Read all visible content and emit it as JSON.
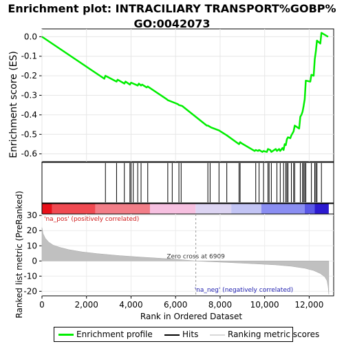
{
  "title_line1": "Enrichment plot: INTRACILIARY TRANSPORT%GOBP%",
  "title_line2": "GO:0042073",
  "chart_data": {
    "type": "line",
    "es_panel": {
      "ylabel": "Enrichment score (ES)",
      "ylim": [
        -0.64,
        0.04
      ],
      "yticks": [
        0.0,
        -0.1,
        -0.2,
        -0.3,
        -0.4,
        -0.5,
        -0.6
      ],
      "ytick_labels": [
        "0.0",
        "-0.1",
        "-0.2",
        "-0.3",
        "-0.4",
        "-0.5",
        "-0.6"
      ],
      "line_color": "#00ee00",
      "x": [
        0,
        2800,
        2850,
        3350,
        3400,
        3700,
        3750,
        3950,
        4000,
        4100,
        4300,
        4350,
        4450,
        4500,
        4700,
        4750,
        5600,
        5650,
        6100,
        6150,
        6300,
        7400,
        7450,
        7600,
        7950,
        8300,
        8850,
        8900,
        8950,
        9550,
        9600,
        9700,
        9750,
        9900,
        9950,
        10100,
        10150,
        10250,
        10300,
        10500,
        10550,
        10650,
        10700,
        10800,
        10850,
        10900,
        10950,
        11000,
        11050,
        11150,
        11200,
        11300,
        11350,
        11550,
        11600,
        11650,
        11700,
        11750,
        11800,
        11850,
        12050,
        12100,
        12200,
        12250,
        12300,
        12350,
        12500,
        12550,
        12850
      ],
      "y": [
        0.0,
        -0.215,
        -0.2,
        -0.23,
        -0.22,
        -0.24,
        -0.23,
        -0.245,
        -0.235,
        -0.24,
        -0.25,
        -0.24,
        -0.25,
        -0.245,
        -0.26,
        -0.255,
        -0.32,
        -0.325,
        -0.345,
        -0.35,
        -0.355,
        -0.455,
        -0.455,
        -0.465,
        -0.48,
        -0.505,
        -0.55,
        -0.54,
        -0.545,
        -0.585,
        -0.58,
        -0.585,
        -0.58,
        -0.59,
        -0.585,
        -0.59,
        -0.575,
        -0.58,
        -0.59,
        -0.575,
        -0.585,
        -0.575,
        -0.585,
        -0.57,
        -0.58,
        -0.55,
        -0.555,
        -0.525,
        -0.515,
        -0.52,
        -0.505,
        -0.485,
        -0.455,
        -0.47,
        -0.41,
        -0.4,
        -0.385,
        -0.355,
        -0.32,
        -0.225,
        -0.23,
        -0.195,
        -0.2,
        -0.115,
        -0.075,
        -0.02,
        -0.035,
        0.02,
        0.0
      ]
    },
    "hits": [
      2850,
      3350,
      3700,
      3950,
      4000,
      4100,
      4300,
      4450,
      4750,
      5650,
      5850,
      6150,
      6250,
      7450,
      7550,
      7950,
      8300,
      8850,
      8900,
      9600,
      9750,
      9950,
      10150,
      10200,
      10300,
      10550,
      10700,
      10850,
      10950,
      11000,
      11050,
      11200,
      11300,
      11350,
      11600,
      11700,
      11750,
      11800,
      11850,
      12100,
      12250,
      12300,
      12350,
      12550
    ],
    "rank_panel": {
      "ylabel": "Ranked list metric (PreRanked)",
      "ylim": [
        -23,
        31
      ],
      "yticks": [
        30,
        20,
        10,
        0,
        -10,
        -20
      ],
      "ytick_labels": [
        "30",
        "20",
        "10",
        "0",
        "-10",
        "-20"
      ],
      "fill_color": "#c0c0c0",
      "x": [
        0,
        50,
        150,
        300,
        500,
        800,
        1200,
        1800,
        2500,
        3500,
        4500,
        5500,
        6200,
        6909,
        7600,
        8500,
        9500,
        10500,
        11200,
        11800,
        12200,
        12500,
        12700,
        12800,
        12850,
        12880
      ],
      "y": [
        22,
        18,
        15,
        12.5,
        10.5,
        9,
        7.5,
        6,
        4.8,
        3.5,
        2.5,
        1.6,
        0.9,
        0,
        -0.5,
        -1.1,
        -1.8,
        -2.6,
        -3.5,
        -4.8,
        -6.3,
        -8.3,
        -10.5,
        -13,
        -17,
        -22
      ],
      "pos_label": "'na_pos' (positively correlated)",
      "neg_label": "'na_neg' (negatively correlated)",
      "zero_cross_label": "Zero cross at 6909",
      "zero_cross": 6909
    },
    "xaxis": {
      "xlabel": "Rank in Ordered Dataset",
      "xlim": [
        0,
        13100
      ],
      "xticks": [
        0,
        2000,
        4000,
        6000,
        8000,
        10000,
        12000
      ],
      "xtick_labels": [
        "0",
        "2,000",
        "4,000",
        "6,000",
        "8,000",
        "10,000",
        "12,000"
      ]
    },
    "colorbar": {
      "segments": [
        {
          "start": 0,
          "end": 450,
          "color": "#e8101a"
        },
        {
          "start": 450,
          "end": 2400,
          "color": "#f04a52"
        },
        {
          "start": 2400,
          "end": 4850,
          "color": "#f27e88"
        },
        {
          "start": 4850,
          "end": 6900,
          "color": "#f6c0e0"
        },
        {
          "start": 6900,
          "end": 8500,
          "color": "#dcd4f2"
        },
        {
          "start": 8500,
          "end": 9850,
          "color": "#c2c4f4"
        },
        {
          "start": 9850,
          "end": 11800,
          "color": "#8a8ef2"
        },
        {
          "start": 11800,
          "end": 12250,
          "color": "#5a58e6"
        },
        {
          "start": 12250,
          "end": 12880,
          "color": "#2c1ad0"
        }
      ]
    },
    "legend": {
      "placement": "bottom",
      "items": [
        {
          "label": "Enrichment profile",
          "color": "#00ee00"
        },
        {
          "label": "Hits",
          "color": "#000000"
        },
        {
          "label": "Ranking metric scores",
          "color": "#c0c0c0"
        }
      ]
    }
  }
}
